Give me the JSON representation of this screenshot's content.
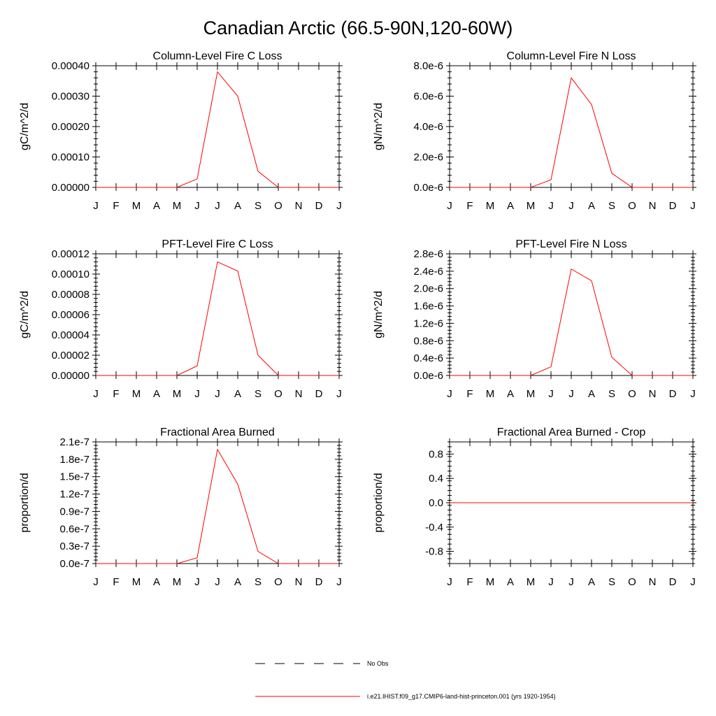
{
  "figure": {
    "title": "Canadian Arctic (66.5-90N,120-60W)"
  },
  "legend": [
    {
      "label": "No Obs",
      "style": "dashed",
      "color": "#000000"
    },
    {
      "label": "i.e21.IHIST.f09_g17.CMIP6-land-hist-princeton.001 (yrs 1920-1954)",
      "style": "solid",
      "color": "#ff0000"
    }
  ],
  "chart_data": [
    {
      "type": "line",
      "title": "Column-Level Fire C Loss",
      "ylabel": "gC/m^2/d",
      "x": [
        "J",
        "F",
        "M",
        "A",
        "M",
        "J",
        "J",
        "A",
        "S",
        "O",
        "N",
        "D",
        "J"
      ],
      "ylim": [
        0,
        0.0004
      ],
      "yticks": [
        0,
        0.0001,
        0.0002,
        0.0003,
        0.0004
      ],
      "yticklabels": [
        "0.00000",
        "0.00010",
        "0.00020",
        "0.00030",
        "0.00040"
      ],
      "series": [
        {
          "color": "#ff0000",
          "values": [
            0,
            0,
            0,
            0,
            0,
            2.8e-05,
            0.00038,
            0.0003,
            5.3e-05,
            0,
            0,
            0,
            0
          ]
        }
      ]
    },
    {
      "type": "line",
      "title": "Column-Level Fire N Loss",
      "ylabel": "gN/m^2/d",
      "x": [
        "J",
        "F",
        "M",
        "A",
        "M",
        "J",
        "J",
        "A",
        "S",
        "O",
        "N",
        "D",
        "J"
      ],
      "ylim": [
        0,
        8e-06
      ],
      "yticks": [
        0,
        2e-06,
        4e-06,
        6e-06,
        8e-06
      ],
      "yticklabels": [
        "0.0e-6",
        "2.0e-6",
        "4.0e-6",
        "6.0e-6",
        "8.0e-6"
      ],
      "series": [
        {
          "color": "#ff0000",
          "values": [
            0,
            0,
            0,
            0,
            0,
            5e-07,
            7.2e-06,
            5.45e-06,
            9.3e-07,
            0,
            0,
            0,
            0
          ]
        }
      ]
    },
    {
      "type": "line",
      "title": "PFT-Level Fire C Loss",
      "ylabel": "gC/m^2/d",
      "x": [
        "J",
        "F",
        "M",
        "A",
        "M",
        "J",
        "J",
        "A",
        "S",
        "O",
        "N",
        "D",
        "J"
      ],
      "ylim": [
        0,
        0.00012
      ],
      "yticks": [
        0,
        2e-05,
        4e-05,
        6e-05,
        8e-05,
        0.0001,
        0.00012
      ],
      "yticklabels": [
        "0.00000",
        "0.00002",
        "0.00004",
        "0.00006",
        "0.00008",
        "0.00010",
        "0.00012"
      ],
      "series": [
        {
          "color": "#ff0000",
          "values": [
            0,
            0,
            0,
            0,
            0,
            9.5e-06,
            0.000112,
            0.000103,
            2e-05,
            0,
            0,
            0,
            0
          ]
        }
      ]
    },
    {
      "type": "line",
      "title": "PFT-Level Fire N Loss",
      "ylabel": "gN/m^2/d",
      "x": [
        "J",
        "F",
        "M",
        "A",
        "M",
        "J",
        "J",
        "A",
        "S",
        "O",
        "N",
        "D",
        "J"
      ],
      "ylim": [
        0,
        2.8e-06
      ],
      "yticks": [
        0,
        4e-07,
        8e-07,
        1.2e-06,
        1.6e-06,
        2e-06,
        2.4e-06,
        2.8e-06
      ],
      "yticklabels": [
        "0.0e-6",
        "0.4e-6",
        "0.8e-6",
        "1.2e-6",
        "1.6e-6",
        "2.0e-6",
        "2.4e-6",
        "2.8e-6"
      ],
      "series": [
        {
          "color": "#ff0000",
          "values": [
            0,
            0,
            0,
            0,
            0,
            2e-07,
            2.45e-06,
            2.18e-06,
            4.2e-07,
            0,
            0,
            0,
            0
          ]
        }
      ]
    },
    {
      "type": "line",
      "title": "Fractional Area Burned",
      "ylabel": "proportion/d",
      "x": [
        "J",
        "F",
        "M",
        "A",
        "M",
        "J",
        "J",
        "A",
        "S",
        "O",
        "N",
        "D",
        "J"
      ],
      "ylim": [
        0,
        2.1e-07
      ],
      "yticks": [
        0,
        3e-08,
        6e-08,
        9e-08,
        1.2e-07,
        1.5e-07,
        1.8e-07,
        2.1e-07
      ],
      "yticklabels": [
        "0.0e-7",
        "0.3e-7",
        "0.6e-7",
        "0.9e-7",
        "1.2e-7",
        "1.5e-7",
        "1.8e-7",
        "2.1e-7"
      ],
      "series": [
        {
          "color": "#ff0000",
          "values": [
            0,
            0,
            0,
            0,
            0,
            1e-08,
            1.97e-07,
            1.37e-07,
            2.1e-08,
            0,
            0,
            0,
            0
          ]
        }
      ]
    },
    {
      "type": "line",
      "title": "Fractional Area Burned - Crop",
      "ylabel": "proportion/d",
      "x": [
        "J",
        "F",
        "M",
        "A",
        "M",
        "J",
        "J",
        "A",
        "S",
        "O",
        "N",
        "D",
        "J"
      ],
      "ylim": [
        -1.0,
        1.0
      ],
      "yticks": [
        -0.8,
        -0.4,
        0.0,
        0.4,
        0.8
      ],
      "yticklabels": [
        "-0.8",
        "-0.4",
        "0.0",
        "0.4",
        "0.8"
      ],
      "series": [
        {
          "color": "#ff0000",
          "values": [
            0,
            0,
            0,
            0,
            0,
            0,
            0,
            0,
            0,
            0,
            0,
            0,
            0
          ]
        }
      ]
    }
  ]
}
